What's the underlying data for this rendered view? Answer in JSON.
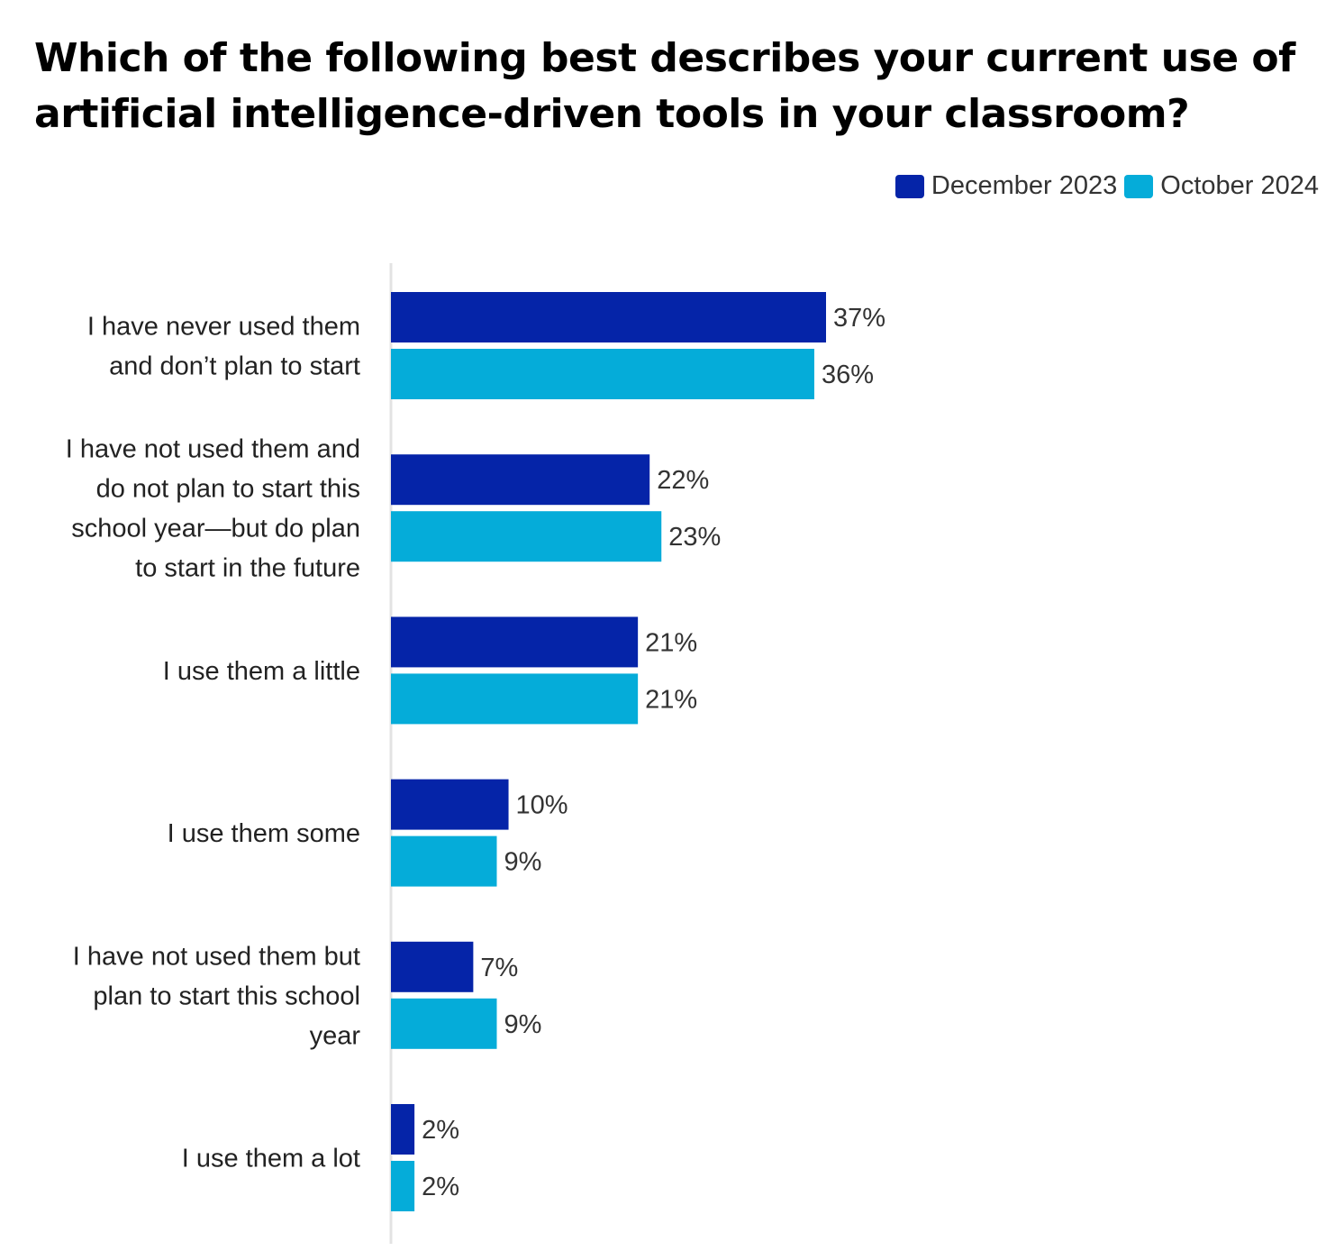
{
  "chart_data": {
    "type": "bar",
    "orientation": "horizontal",
    "title": "Which of the following best describes your current use of artificial intelligence-driven tools in your classroom?",
    "categories": [
      [
        "I have never used them",
        "and don’t plan to start"
      ],
      [
        "I have not used them and",
        "do not plan to start this",
        "school year—but do plan",
        "to start in the future"
      ],
      [
        "I use them a little"
      ],
      [
        "I use them some"
      ],
      [
        "I have not used them but",
        "plan to start this school",
        "year"
      ],
      [
        "I use them a lot"
      ]
    ],
    "series": [
      {
        "name": "December 2023",
        "color": "#0524a8",
        "values": [
          37,
          22,
          21,
          10,
          7,
          2
        ]
      },
      {
        "name": "October 2024",
        "color": "#05acd9",
        "values": [
          36,
          23,
          21,
          9,
          9,
          2
        ]
      }
    ],
    "value_suffix": "%",
    "xlim": [
      0,
      37
    ],
    "legend_position": "top-right",
    "grid": false
  }
}
